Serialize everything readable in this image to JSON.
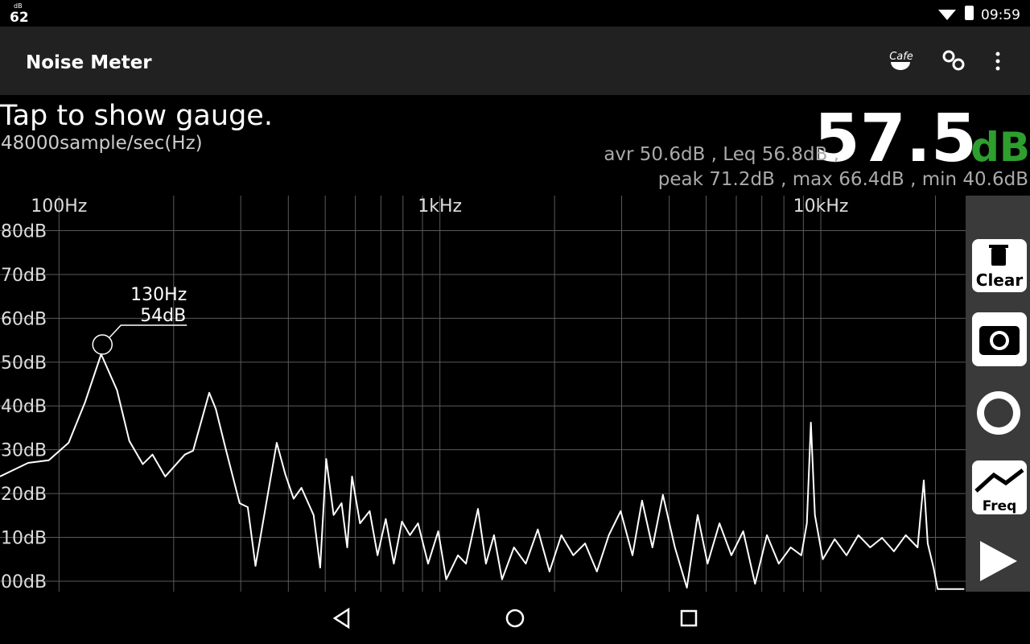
{
  "status_bar": {
    "level": "62",
    "level_unit": "dB",
    "time": "09:59"
  },
  "app_bar": {
    "title": "Noise Meter",
    "cafe_icon": "Cafe"
  },
  "header": {
    "hint": "Tap to show gauge.",
    "sample_rate": "48000sample/sec(Hz)",
    "level": "57.5",
    "level_unit": "dB",
    "stats_line1": "avr 50.6dB , Leq 56.8dB ,",
    "stats_line2": "peak 71.2dB , max 66.4dB , min 40.6dB"
  },
  "chart_data": {
    "type": "line",
    "x": [
      70,
      83,
      94,
      106,
      117,
      129,
      142,
      153,
      166,
      176,
      190,
      214,
      225,
      248,
      258,
      273,
      298,
      313,
      328,
      348,
      373,
      393,
      413,
      433,
      466,
      485,
      503,
      526,
      552,
      571,
      588,
      617,
      654,
      686,
      721,
      757,
      795,
      834,
      876,
      931,
      990,
      1039,
      1115,
      1171,
      1259,
      1321,
      1387,
      1456,
      1565,
      1681,
      1807,
      1940,
      2084,
      2239,
      2405,
      2583,
      2776,
      2982,
      3203,
      3394,
      3614,
      3850,
      4140,
      4450,
      4751,
      5044,
      5420,
      5823,
      6256,
      6720,
      7221,
      7757,
      8334,
      8887,
      9193,
      9416,
      9648,
      10120,
      10870,
      11680,
      12550,
      13480,
      14480,
      15560,
      16710,
      17950,
      18640,
      19090,
      19770,
      20260,
      23800
    ],
    "series": [
      {
        "color": "#ffffff",
        "values": [
          23.9,
          27,
          27.6,
          31.6,
          40.8,
          51.8,
          43.6,
          32,
          26.7,
          28.9,
          23.9,
          28.9,
          29.8,
          43,
          39.3,
          30.7,
          17.8,
          16.9,
          3.5,
          16.5,
          31.6,
          24.3,
          18.8,
          21.3,
          15.1,
          3.1,
          27.9,
          15.1,
          17.8,
          7.7,
          23.9,
          13.2,
          16,
          5.9,
          14.2,
          4,
          13.6,
          10.5,
          13.2,
          4,
          11.4,
          0.4,
          5.9,
          4,
          16.5,
          4,
          10.5,
          0.4,
          7.7,
          4,
          11.8,
          2.2,
          10.5,
          5.9,
          8.6,
          2.2,
          10.5,
          16,
          5.9,
          18.4,
          7.7,
          19.7,
          7.7,
          -1.5,
          15.1,
          4,
          13.2,
          5.9,
          11.4,
          -0.6,
          10.5,
          4,
          7.7,
          5.9,
          13.2,
          36.2,
          15.1,
          5,
          9.6,
          5.9,
          10.5,
          7.7,
          9.9,
          6.8,
          10.5,
          7.7,
          23,
          8.6,
          3.1,
          -1.8,
          -1.8
        ]
      }
    ],
    "xscale": "log",
    "xlim": [
      70,
      24000
    ],
    "xticks": [
      {
        "value": 100,
        "label": "100Hz"
      },
      {
        "value": 1000,
        "label": "1kHz"
      },
      {
        "value": 10000,
        "label": "10kHz"
      }
    ],
    "xgrid": [
      200,
      300,
      400,
      500,
      600,
      700,
      800,
      900,
      2000,
      3000,
      4000,
      5000,
      6000,
      7000,
      8000,
      9000,
      20000
    ],
    "ylim": [
      -2.4,
      88
    ],
    "yticks": [
      {
        "value": 0,
        "label": "00dB"
      },
      {
        "value": 10,
        "label": "10dB"
      },
      {
        "value": 20,
        "label": "20dB"
      },
      {
        "value": 30,
        "label": "30dB"
      },
      {
        "value": 40,
        "label": "40dB"
      },
      {
        "value": 50,
        "label": "50dB"
      },
      {
        "value": 60,
        "label": "60dB"
      },
      {
        "value": 70,
        "label": "70dB"
      },
      {
        "value": 80,
        "label": "80dB"
      }
    ],
    "grid": true,
    "annotation": {
      "x": 130,
      "y": 54,
      "x_label": "130Hz",
      "y_label": "54dB"
    }
  },
  "side_buttons": {
    "clear": "Clear",
    "freq": "Freq"
  }
}
